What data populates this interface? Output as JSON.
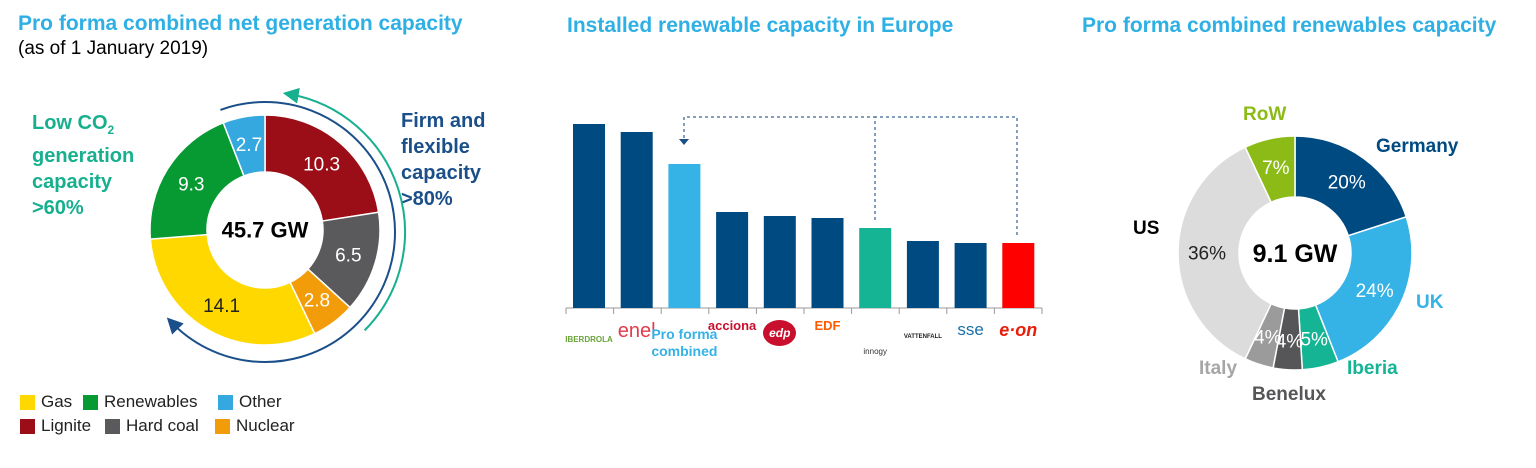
{
  "left": {
    "title": "Pro forma combined  net generation capacity",
    "subtitle": "(as of 1 January 2019)",
    "low_co2": {
      "line1": "Low CO",
      "sub": "2",
      "line2": "generation",
      "line3": "capacity",
      "line4": ">60%",
      "color": "#17b08f"
    },
    "firm": {
      "line1": "Firm and",
      "line2": "flexible",
      "line3": "capacity",
      "line4": ">80%",
      "color": "#1b4f8a"
    },
    "legend": [
      {
        "label": "Gas",
        "color": "#ffd800"
      },
      {
        "label": "Renewables",
        "color": "#079a33"
      },
      {
        "label": "Other",
        "color": "#35a8e0"
      },
      {
        "label": "Lignite",
        "color": "#9b0e17"
      },
      {
        "label": "Hard coal",
        "color": "#5a5a5c"
      },
      {
        "label": "Nuclear",
        "color": "#f39c0a"
      }
    ]
  },
  "middle": {
    "title": "Installed renewable capacity in Europe"
  },
  "right": {
    "title": "Pro forma combined renewables capacity"
  },
  "chart_data": [
    {
      "type": "pie",
      "variant": "donut",
      "title": "Pro forma combined  net generation capacity",
      "center_label": "45.7 GW",
      "unit": "GW",
      "slices": [
        {
          "name": "Lignite",
          "value": 10.3,
          "label": "10.3",
          "color": "#9b0e17",
          "text_color": "#ffffff"
        },
        {
          "name": "Hard coal",
          "value": 6.5,
          "label": "6.5",
          "color": "#5a5a5c",
          "text_color": "#ffffff"
        },
        {
          "name": "Nuclear",
          "value": 2.8,
          "label": "2.8",
          "color": "#f39c0a",
          "text_color": "#ffffff"
        },
        {
          "name": "Gas",
          "value": 14.1,
          "label": "14.1",
          "color": "#ffd800",
          "text_color": "#222222"
        },
        {
          "name": "Renewables",
          "value": 9.3,
          "label": "9.3",
          "color": "#079a33",
          "text_color": "#ffffff"
        },
        {
          "name": "Other",
          "value": 2.7,
          "label": "2.7",
          "color": "#35a8e0",
          "text_color": "#ffffff"
        }
      ]
    },
    {
      "type": "bar",
      "title": "Installed renewable capacity in Europe",
      "note": "relative bar heights, no axis values shown",
      "categories": [
        "IBERDROLA",
        "enel",
        "Pro forma combined",
        "acciona",
        "edp",
        "EDF",
        "innogy",
        "VATTENFALL",
        "sse",
        "e·on"
      ],
      "values": [
        184,
        176,
        144,
        96,
        92,
        90,
        80,
        67,
        65,
        65
      ],
      "colors": [
        "#004a82",
        "#004a82",
        "#35b2e6",
        "#004a82",
        "#004a82",
        "#004a82",
        "#14b494",
        "#004a82",
        "#004a82",
        "#ff0000"
      ],
      "category_colors": [
        "#6aa339",
        "#e23b4b",
        "#35b2e6",
        "#c8102e",
        "#c8102e",
        "#ff5b00",
        "#333333",
        "#1c1c1c",
        "#1b6fa8",
        "#ea1c0a"
      ]
    },
    {
      "type": "pie",
      "variant": "donut",
      "title": "Pro forma combined renewables capacity",
      "center_label": "9.1 GW",
      "unit": "%",
      "slices": [
        {
          "name": "Germany",
          "value": 20,
          "label": "20%",
          "color": "#004a82",
          "text_color": "#ffffff",
          "name_color": "#004a82"
        },
        {
          "name": "UK",
          "value": 24,
          "label": "24%",
          "color": "#35b2e6",
          "text_color": "#ffffff",
          "name_color": "#35b2e6"
        },
        {
          "name": "Iberia",
          "value": 5,
          "label": "5%",
          "color": "#14b494",
          "text_color": "#ffffff",
          "name_color": "#14b494"
        },
        {
          "name": "Benelux",
          "value": 4,
          "label": "4%",
          "color": "#565658",
          "text_color": "#ffffff",
          "name_color": "#565658"
        },
        {
          "name": "Italy",
          "value": 4,
          "label": "4%",
          "color": "#9b9b9b",
          "text_color": "#ffffff",
          "name_color": "#a6a6a6"
        },
        {
          "name": "US",
          "value": 36,
          "label": "36%",
          "color": "#dcdcdc",
          "text_color": "#222222",
          "name_color": "#000000"
        },
        {
          "name": "RoW",
          "value": 7,
          "label": "7%",
          "color": "#8cbb18",
          "text_color": "#ffffff",
          "name_color": "#8cbb18"
        }
      ]
    }
  ]
}
